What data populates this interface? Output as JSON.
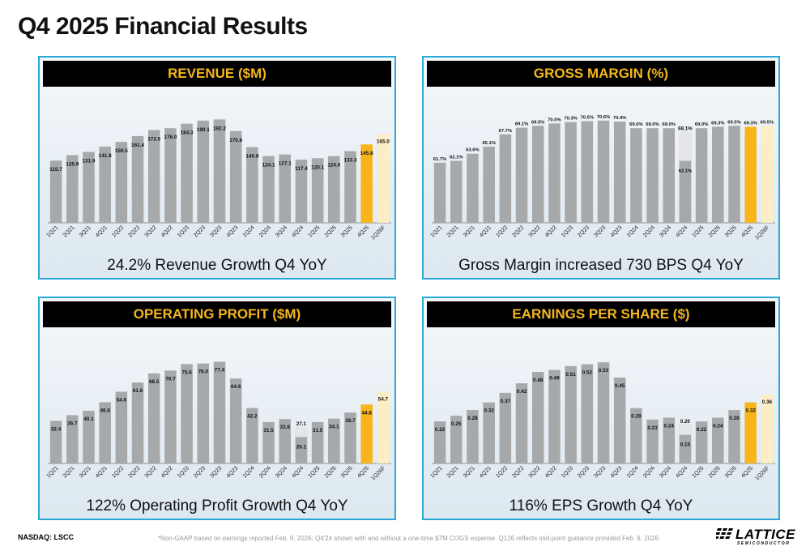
{
  "page": {
    "title": "Q4 2025 Financial Results",
    "ticker": "NASDAQ: LSCC",
    "footnote": "*Non-GAAP based on earnings reported Feb. 9, 2026; Q4'24 shown with and without a one-time $7M COGS expense. Q126 reflects mid-point guidance provided Feb. 9, 2026.",
    "logo": {
      "word": "LATTICE",
      "sub": "SEMICONDUCTOR"
    }
  },
  "colors": {
    "bar": "#a7a8aa",
    "highlight": "#f7b41b",
    "forecast": "#fbeec5",
    "header_bg": "#000000",
    "header_text": "#f5b71c",
    "panel_border": "#2aa8d8"
  },
  "panels": {
    "revenue": {
      "title": "REVENUE ($M)",
      "caption": "24.2% Revenue Growth Q4 YoY"
    },
    "gross_margin": {
      "title": "GROSS MARGIN (%)",
      "caption": "Gross Margin increased 730 BPS Q4 YoY"
    },
    "operating_profit": {
      "title": "OPERATING PROFIT ($M)",
      "caption": "122% Operating Profit Growth Q4 YoY"
    },
    "eps": {
      "title": "EARNINGS PER SHARE ($)",
      "caption": "116% EPS Growth Q4 YoY"
    }
  },
  "chart_data": [
    {
      "id": "revenue",
      "type": "bar",
      "title": "REVENUE ($M)",
      "categories": [
        "1Q21",
        "2Q21",
        "3Q21",
        "4Q21",
        "1Q22",
        "2Q22",
        "3Q22",
        "4Q22",
        "1Q23",
        "2Q23",
        "3Q23",
        "4Q23",
        "1Q24",
        "2Q24",
        "3Q24",
        "4Q24",
        "1Q25",
        "2Q25",
        "3Q25",
        "4Q25",
        "1Q26F"
      ],
      "values": [
        115.7,
        125.9,
        131.9,
        141.8,
        150.5,
        161.4,
        172.5,
        176.0,
        184.3,
        190.1,
        192.2,
        170.6,
        140.8,
        124.1,
        127.1,
        117.4,
        120.1,
        124.0,
        133.3,
        145.8,
        165.0
      ],
      "labels": [
        "115.7",
        "125.9",
        "131.9",
        "141.8",
        "150.5",
        "161.4",
        "172.5",
        "176.0",
        "184.3",
        "190.1",
        "192.2",
        "170.6",
        "140.8",
        "124.1",
        "127.1",
        "117.4",
        "120.1",
        "124.0",
        "133.3",
        "145.8",
        "165.0"
      ],
      "highlight_index": 19,
      "forecast_index": 20,
      "ylim": [
        0,
        220
      ]
    },
    {
      "id": "gross_margin",
      "type": "bar",
      "title": "GROSS MARGIN (%)",
      "categories": [
        "1Q21",
        "2Q21",
        "3Q21",
        "4Q21",
        "1Q22",
        "2Q22",
        "3Q22",
        "4Q22",
        "1Q23",
        "2Q23",
        "3Q23",
        "4Q23",
        "1Q24",
        "2Q24",
        "3Q24",
        "4Q24",
        "1Q25",
        "2Q25",
        "3Q25",
        "4Q25",
        "1Q26F"
      ],
      "values": [
        61.7,
        62.1,
        63.6,
        65.1,
        67.7,
        69.1,
        69.5,
        70.0,
        70.3,
        70.5,
        70.6,
        70.4,
        69.0,
        69.0,
        69.0,
        62.1,
        69.0,
        69.3,
        69.5,
        69.3,
        69.5
      ],
      "labels": [
        "61.7%",
        "62.1%",
        "63.6%",
        "65.1%",
        "67.7%",
        "69.1%",
        "69.5%",
        "70.0%",
        "70.3%",
        "70.5%",
        "70.6%",
        "70.4%",
        "69.0%",
        "69.0%",
        "69.0%",
        "62.1%",
        "69.0%",
        "69.3%",
        "69.5%",
        "69.3%",
        "69.5%"
      ],
      "alt": {
        "index": 15,
        "value": 68.1,
        "label": "68.1%"
      },
      "highlight_index": 19,
      "forecast_index": 20,
      "ylim": [
        49,
        74
      ]
    },
    {
      "id": "operating_profit",
      "type": "bar",
      "title": "OPERATING PROFIT ($M)",
      "categories": [
        "1Q21",
        "2Q21",
        "3Q21",
        "4Q21",
        "1Q22",
        "2Q22",
        "3Q22",
        "4Q22",
        "1Q23",
        "2Q23",
        "3Q23",
        "4Q23",
        "1Q24",
        "2Q24",
        "3Q24",
        "4Q24",
        "1Q25",
        "2Q25",
        "3Q25",
        "4Q25",
        "1Q26F"
      ],
      "values": [
        32.4,
        36.7,
        40.1,
        46.6,
        54.6,
        61.6,
        68.5,
        70.7,
        75.6,
        76.0,
        77.4,
        64.6,
        42.2,
        31.5,
        33.8,
        20.1,
        31.5,
        34.1,
        38.7,
        44.8,
        54.7
      ],
      "labels": [
        "32.4",
        "36.7",
        "40.1",
        "46.6",
        "54.6",
        "61.6",
        "68.5",
        "70.7",
        "75.6",
        "76.0",
        "77.4",
        "64.6",
        "42.2",
        "31.5",
        "33.8",
        "20.1",
        "31.5",
        "34.1",
        "38.7",
        "44.8",
        "54.7"
      ],
      "alt": {
        "index": 15,
        "value": 27.1,
        "label": "27.1"
      },
      "highlight_index": 19,
      "forecast_index": 20,
      "ylim": [
        0,
        90
      ]
    },
    {
      "id": "eps",
      "type": "bar",
      "title": "EARNINGS PER SHARE ($)",
      "categories": [
        "1Q21",
        "2Q21",
        "3Q21",
        "4Q21",
        "1Q22",
        "2Q22",
        "3Q22",
        "4Q22",
        "1Q23",
        "2Q23",
        "3Q23",
        "4Q23",
        "1Q24",
        "2Q24",
        "3Q24",
        "4Q24",
        "1Q25",
        "2Q25",
        "3Q25",
        "4Q25",
        "1Q26F"
      ],
      "values": [
        0.22,
        0.25,
        0.28,
        0.32,
        0.37,
        0.42,
        0.48,
        0.49,
        0.51,
        0.52,
        0.53,
        0.45,
        0.29,
        0.23,
        0.24,
        0.15,
        0.22,
        0.24,
        0.28,
        0.32,
        0.36
      ],
      "labels": [
        "0.22",
        "0.25",
        "0.28",
        "0.32",
        "0.37",
        "0.42",
        "0.48",
        "0.49",
        "0.51",
        "0.52",
        "0.53",
        "0.45",
        "0.29",
        "0.23",
        "0.24",
        "0.15",
        "0.22",
        "0.24",
        "0.28",
        "0.32",
        "0.36"
      ],
      "alt": {
        "index": 15,
        "value": 0.2,
        "label": "0.20"
      },
      "highlight_index": 19,
      "forecast_index": 20,
      "ylim": [
        0,
        0.62
      ]
    }
  ]
}
